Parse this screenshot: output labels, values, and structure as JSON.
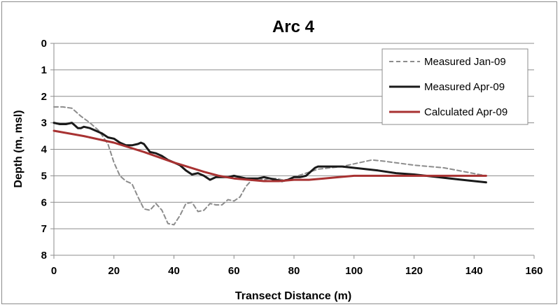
{
  "chart_data": {
    "type": "line",
    "title": "Arc 4",
    "xlabel": "Transect Distance (m)",
    "ylabel": "Depth (m, msl)",
    "xlim": [
      0,
      160
    ],
    "ylim": [
      0,
      8
    ],
    "y_inverted": true,
    "x_ticks": [
      0,
      20,
      40,
      60,
      80,
      100,
      120,
      140,
      160
    ],
    "y_ticks": [
      0,
      1,
      2,
      3,
      4,
      5,
      6,
      7,
      8
    ],
    "grid": "horizontal",
    "legend_position": "top-right",
    "series": [
      {
        "name": "Measured Jan-09",
        "color": "#8c8c8c",
        "style": "dashed",
        "x": [
          0,
          3,
          6,
          9,
          12,
          15,
          18,
          20,
          22,
          24,
          26,
          28,
          30,
          32,
          34,
          36,
          38,
          40,
          42,
          44,
          46,
          48,
          50,
          52,
          54,
          56,
          58,
          60,
          62,
          64,
          66,
          68,
          70,
          72,
          74,
          76,
          78,
          80,
          84,
          88,
          92,
          96,
          100,
          106,
          110,
          120,
          130,
          144
        ],
        "y": [
          2.4,
          2.4,
          2.45,
          2.75,
          3.0,
          3.3,
          3.8,
          4.5,
          5.0,
          5.2,
          5.3,
          5.8,
          6.25,
          6.3,
          6.05,
          6.3,
          6.8,
          6.85,
          6.5,
          6.05,
          6.0,
          6.35,
          6.3,
          6.05,
          6.1,
          6.1,
          5.9,
          5.95,
          5.8,
          5.4,
          5.15,
          5.1,
          5.15,
          5.1,
          5.1,
          5.15,
          5.15,
          5.05,
          4.9,
          4.75,
          4.7,
          4.65,
          4.55,
          4.4,
          4.45,
          4.6,
          4.7,
          5.0
        ]
      },
      {
        "name": "Measured Apr-09",
        "color": "#1a1a1a",
        "style": "solid",
        "x": [
          0,
          2,
          4,
          6,
          7,
          8,
          9,
          10,
          12,
          14,
          16,
          18,
          20,
          22,
          24,
          26,
          28,
          29,
          30,
          31,
          32,
          34,
          36,
          38,
          40,
          42,
          44,
          46,
          48,
          50,
          52,
          54,
          56,
          58,
          60,
          62,
          64,
          66,
          68,
          70,
          72,
          74,
          76,
          78,
          80,
          82,
          84,
          85,
          86,
          87,
          88,
          90,
          92,
          96,
          100,
          104,
          108,
          114,
          120,
          128,
          136,
          144
        ],
        "y": [
          3.0,
          3.05,
          3.05,
          3.0,
          3.1,
          3.2,
          3.2,
          3.15,
          3.2,
          3.3,
          3.4,
          3.55,
          3.6,
          3.75,
          3.85,
          3.85,
          3.8,
          3.75,
          3.8,
          3.95,
          4.1,
          4.15,
          4.25,
          4.4,
          4.5,
          4.6,
          4.8,
          4.95,
          4.9,
          5.0,
          5.15,
          5.05,
          5.05,
          5.05,
          5.0,
          5.05,
          5.1,
          5.1,
          5.1,
          5.05,
          5.1,
          5.15,
          5.2,
          5.15,
          5.05,
          5.05,
          5.0,
          4.9,
          4.8,
          4.7,
          4.65,
          4.65,
          4.65,
          4.65,
          4.7,
          4.75,
          4.8,
          4.9,
          4.95,
          5.05,
          5.15,
          5.25
        ]
      },
      {
        "name": "Calculated Apr-09",
        "color": "#a83232",
        "style": "solid",
        "x": [
          0,
          10,
          20,
          30,
          40,
          50,
          55,
          60,
          65,
          70,
          75,
          80,
          85,
          90,
          95,
          100,
          105,
          110,
          115,
          120,
          125,
          130,
          135,
          140,
          144
        ],
        "y": [
          3.3,
          3.5,
          3.75,
          4.1,
          4.5,
          4.85,
          5.0,
          5.1,
          5.15,
          5.2,
          5.2,
          5.15,
          5.15,
          5.1,
          5.05,
          5.0,
          5.0,
          5.0,
          5.0,
          5.0,
          5.0,
          5.0,
          5.0,
          5.0,
          5.0
        ]
      }
    ]
  }
}
